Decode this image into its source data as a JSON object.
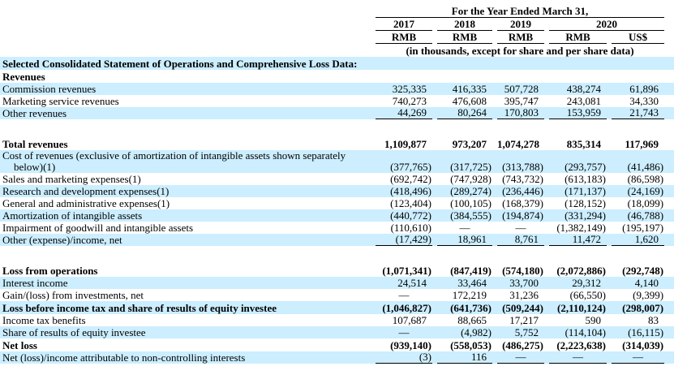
{
  "header": {
    "title": "For the Year Ended March 31,",
    "years": [
      "2017",
      "2018",
      "2019",
      "2020"
    ],
    "currencies": [
      "RMB",
      "RMB",
      "RMB",
      "RMB",
      "US$"
    ],
    "note": "(in thousands, except for share and per share data)"
  },
  "colors": {
    "row_highlight": "#cceeff",
    "text": "#000000",
    "rule_line": "#000000"
  },
  "rows": [
    {
      "type": "section",
      "label": "Selected Consolidated Statement of Operations and Comprehensive Loss Data:",
      "bold": true,
      "highlight": true
    },
    {
      "type": "section",
      "label": "Revenues",
      "bold": true,
      "highlight": false
    },
    {
      "type": "data",
      "label": "Commission revenues",
      "highlight": true,
      "values": [
        "325,335",
        "416,335",
        "507,728",
        "438,274",
        "61,896"
      ]
    },
    {
      "type": "data",
      "label": "Marketing service revenues",
      "highlight": false,
      "values": [
        "740,273",
        "476,608",
        "395,747",
        "243,081",
        "34,330"
      ]
    },
    {
      "type": "data",
      "label": "Other revenues",
      "highlight": true,
      "underline": true,
      "values": [
        "44,269",
        "80,264",
        "170,803",
        "153,959",
        "21,743"
      ]
    },
    {
      "type": "gap"
    },
    {
      "type": "data",
      "label": "Total revenues",
      "bold": true,
      "highlight": false,
      "values": [
        "1,109,877",
        "973,207",
        "1,074,278",
        "835,314",
        "117,969"
      ]
    },
    {
      "type": "data",
      "label": "Cost of revenues (exclusive of amortization of intangible assets shown separately",
      "label2": "below)(1)",
      "highlight": true,
      "values": [
        "(377,765)",
        "(317,725)",
        "(313,788)",
        "(293,757)",
        "(41,486)"
      ]
    },
    {
      "type": "data",
      "label": "Sales and marketing expenses(1)",
      "highlight": false,
      "values": [
        "(692,742)",
        "(747,928)",
        "(743,732)",
        "(613,183)",
        "(86,598)"
      ]
    },
    {
      "type": "data",
      "label": "Research and development expenses(1)",
      "highlight": true,
      "values": [
        "(418,496)",
        "(289,274)",
        "(236,446)",
        "(171,137)",
        "(24,169)"
      ]
    },
    {
      "type": "data",
      "label": "General and administrative expenses(1)",
      "highlight": false,
      "values": [
        "(123,404)",
        "(100,105)",
        "(168,379)",
        "(128,152)",
        "(18,099)"
      ]
    },
    {
      "type": "data",
      "label": "Amortization of intangible assets",
      "highlight": true,
      "values": [
        "(440,772)",
        "(384,555)",
        "(194,874)",
        "(331,294)",
        "(46,788)"
      ]
    },
    {
      "type": "data",
      "label": "Impairment of goodwill and intangible assets",
      "highlight": false,
      "values": [
        "(110,610)",
        "—",
        "—",
        "(1,382,149)",
        "(195,197)"
      ]
    },
    {
      "type": "data",
      "label": "Other (expense)/income, net",
      "highlight": true,
      "underline": true,
      "values": [
        "(17,429)",
        "18,961",
        "8,761",
        "11,472",
        "1,620"
      ]
    },
    {
      "type": "gap"
    },
    {
      "type": "data",
      "label": "Loss from operations",
      "bold": true,
      "highlight": false,
      "values": [
        "(1,071,341)",
        "(847,419)",
        "(574,180)",
        "(2,072,886)",
        "(292,748)"
      ]
    },
    {
      "type": "data",
      "label": "Interest income",
      "highlight": true,
      "values": [
        "24,514",
        "33,464",
        "33,700",
        "29,312",
        "4,140"
      ]
    },
    {
      "type": "data",
      "label": "Gain/(loss) from investments, net",
      "highlight": false,
      "values": [
        "—",
        "172,219",
        "31,236",
        "(66,550)",
        "(9,399)"
      ]
    },
    {
      "type": "data",
      "label": "Loss before income tax and share of results of equity investee",
      "bold": true,
      "highlight": true,
      "values": [
        "(1,046,827)",
        "(641,736)",
        "(509,244)",
        "(2,110,124)",
        "(298,007)"
      ]
    },
    {
      "type": "data",
      "label": "Income tax benefits",
      "highlight": false,
      "values": [
        "107,687",
        "88,665",
        "17,217",
        "590",
        "83"
      ]
    },
    {
      "type": "data",
      "label": "Share of results of equity investee",
      "highlight": true,
      "values": [
        "—",
        "(4,982)",
        "5,752",
        "(114,104)",
        "(16,115)"
      ]
    },
    {
      "type": "data",
      "label": "Net loss",
      "bold": true,
      "highlight": false,
      "values": [
        "(939,140)",
        "(558,053)",
        "(486,275)",
        "(2,223,638)",
        "(314,039)"
      ]
    },
    {
      "type": "data",
      "label": "Net (loss)/income attributable to non-controlling interests",
      "highlight": true,
      "underline": true,
      "values": [
        "(3)",
        "116",
        "—",
        "—",
        "—"
      ]
    }
  ]
}
